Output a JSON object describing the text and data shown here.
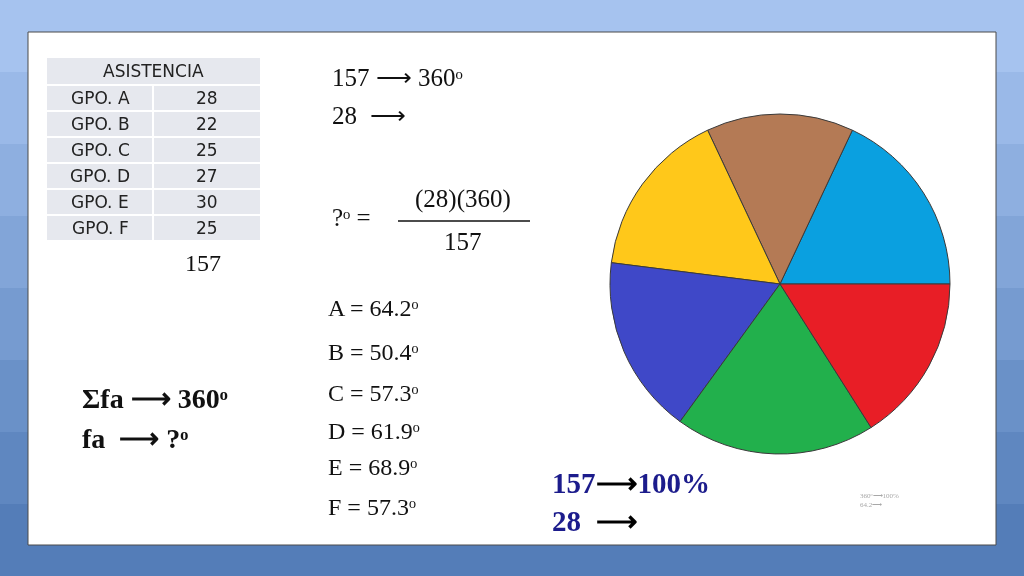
{
  "chart_data": {
    "type": "pie",
    "categories": [
      null,
      null,
      null,
      null,
      null,
      null
    ],
    "values": [
      18,
      14,
      16,
      17,
      19,
      16
    ],
    "colors": [
      "#0aa0e0",
      "#b47a55",
      "#ffc81a",
      "#3f48c8",
      "#22b04c",
      "#e81e26"
    ],
    "annotations": [
      "ASISTENCIA",
      "GPO. A",
      "28",
      "GPO. B",
      "22",
      "GPO. C",
      "25",
      "GPO. D",
      "27",
      "GPO. E",
      "30",
      "GPO. F",
      "25",
      "157",
      "157 ⟶ 360ᵒ",
      "28  ⟶",
      "?ᵒ =",
      "(28)(360)",
      "157",
      "A = 64.2ᵒ",
      "B = 50.4ᵒ",
      "C = 57.3ᵒ",
      "D = 61.9ᵒ",
      "E = 68.9ᵒ",
      "F = 57.3ᵒ",
      "Σfa ⟶ 360ᵒ",
      "fa  ⟶ ?ᵒ",
      "157⟶100%",
      "28  ⟶",
      "360ᵒ⟶100%",
      "64.2⟶"
    ]
  }
}
